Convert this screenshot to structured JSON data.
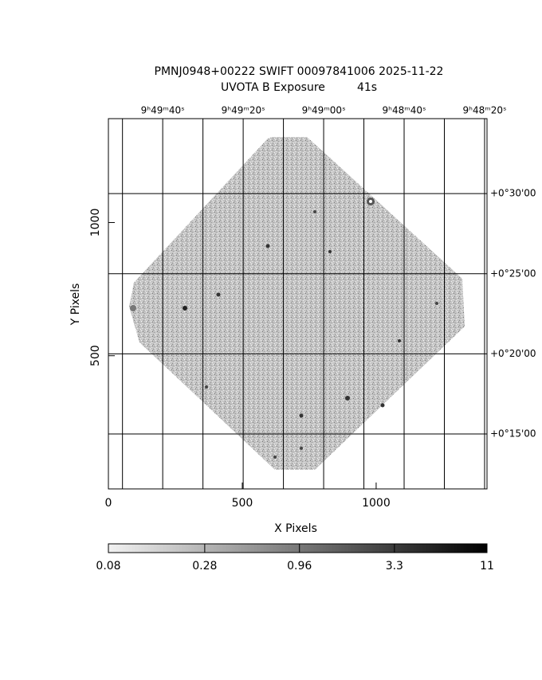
{
  "chart_data": {
    "type": "image",
    "title": "PMNJ0948+00222 SWIFT 00097841006 2025-11-22",
    "subtitle": "UVOTA B Exposure         41s",
    "xlabel": "X Pixels",
    "ylabel": "Y Pixels",
    "xlim": [
      0,
      1414
    ],
    "xticks": [
      0,
      500,
      1000
    ],
    "ylim": [
      0,
      1390
    ],
    "yticks": [
      500,
      1000
    ],
    "x2lim": [
      2993.5,
      2899.4
    ],
    "x2ticks": [
      {
        "value": 2980,
        "label": "9ʰ49ᵐ40ˢ"
      },
      {
        "value": 2960,
        "label": "9ʰ49ᵐ20ˢ"
      },
      {
        "value": 2940,
        "label": "9ʰ49ᵐ00ˢ"
      },
      {
        "value": 2920,
        "label": "9ʰ48ᵐ40ˢ"
      },
      {
        "value": 2900,
        "label": "9ʰ48ᵐ20ˢ"
      }
    ],
    "x2grid": [
      2990,
      2980,
      2970,
      2960,
      2950,
      2940,
      2930,
      2920,
      2910,
      2900
    ],
    "y2lim": [
      11.57,
      34.68
    ],
    "y2ticks": [
      {
        "value": 30,
        "label": "+0°30'00"
      },
      {
        "value": 25,
        "label": "+0°25'00"
      },
      {
        "value": 20,
        "label": "+0°20'00"
      },
      {
        "value": 15,
        "label": "+0°15'00"
      }
    ],
    "grid": true,
    "colorbar": {
      "lim": [
        0.08,
        11
      ],
      "log": true,
      "colors": [
        "#f2f2f2",
        "#000000"
      ],
      "ticks": [
        0.08,
        0.28,
        0.96,
        3.3,
        11
      ]
    }
  }
}
